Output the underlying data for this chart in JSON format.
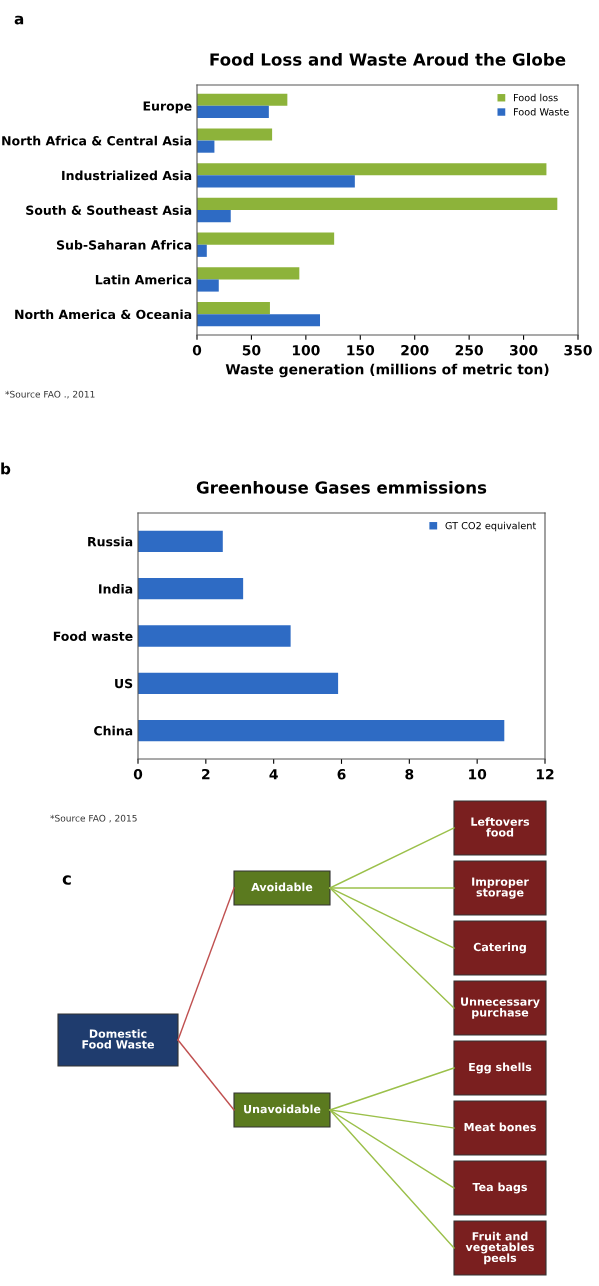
{
  "chart_data": [
    {
      "type": "bar",
      "orientation": "horizontal",
      "title": "Food Loss and Waste Aroud the Globe",
      "xlabel": "Waste generation (millions of metric ton)",
      "categories": [
        "Europe",
        "North Africa & Central Asia",
        "Industrialized Asia",
        "South & Southeast Asia",
        "Sub-Saharan Africa",
        "Latin America",
        "North America & Oceania"
      ],
      "series": [
        {
          "name": "Food loss",
          "color": "#8db33a",
          "values": [
            83,
            69,
            321,
            331,
            126,
            94,
            67
          ]
        },
        {
          "name": "Food Waste",
          "color": "#2e6bc4",
          "values": [
            66,
            16,
            145,
            31,
            9,
            20,
            113
          ]
        }
      ],
      "xlim": [
        0,
        350
      ],
      "xticks": [
        0,
        50,
        100,
        150,
        200,
        250,
        300,
        350
      ],
      "legend": "top right",
      "annotations": [
        "a",
        "*Source FAO ., 2011"
      ]
    },
    {
      "type": "bar",
      "orientation": "horizontal",
      "title": "Greenhouse Gases emmissions",
      "categories": [
        "Russia",
        "India",
        "Food waste",
        "US",
        "China"
      ],
      "series": [
        {
          "name": "GT CO2 equivalent",
          "color": "#2e6bc4",
          "values": [
            2.5,
            3.1,
            4.5,
            5.9,
            10.8
          ]
        }
      ],
      "xlim": [
        0,
        12
      ],
      "xticks": [
        0,
        2,
        4,
        6,
        8,
        10,
        12
      ],
      "legend": "top right",
      "annotations": [
        "b",
        "*Source FAO , 2015"
      ]
    },
    {
      "type": "other",
      "annotations": [
        "c",
        "Domestic\nFood Waste",
        "Avoidable",
        "Unavoidable",
        "Leftovers\nfood",
        "Improper\nstorage",
        "Catering",
        "Unnecessary\npurchase",
        "Egg shells",
        "Meat bones",
        "Tea bags",
        "Fruit and\nvegetables\npeels"
      ]
    }
  ]
}
